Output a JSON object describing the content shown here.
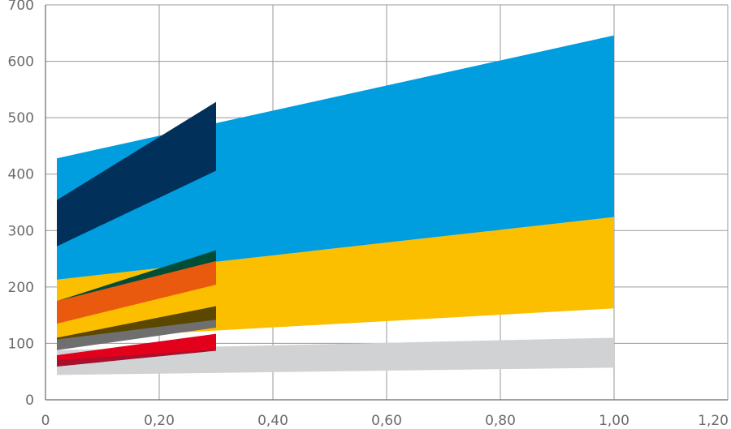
{
  "chart_data": {
    "type": "area",
    "title": "",
    "xlabel": "",
    "ylabel": "",
    "xlim": [
      0,
      1.2
    ],
    "ylim": [
      0,
      700
    ],
    "grid": true,
    "x_ticks": [
      0,
      0.2,
      0.4,
      0.6,
      0.8,
      1.0,
      1.2
    ],
    "x_tick_labels": [
      "0",
      "0,20",
      "0,40",
      "0,60",
      "0,80",
      "1,00",
      "1,20"
    ],
    "y_ticks": [
      0,
      100,
      200,
      300,
      400,
      500,
      600,
      700
    ],
    "y_tick_labels": [
      "0",
      "100",
      "200",
      "300",
      "400",
      "500",
      "600",
      "700"
    ],
    "series": [
      {
        "color": "#d1d2d4",
        "x": [
          0.02,
          1.0
        ],
        "lower": [
          44,
          57
        ],
        "upper": [
          88,
          110
        ]
      },
      {
        "color": "#fbbf00",
        "x": [
          0.02,
          1.0
        ],
        "lower": [
          107,
          162
        ],
        "upper": [
          213,
          324
        ]
      },
      {
        "color": "#009ddf",
        "x": [
          0.02,
          1.0
        ],
        "lower": [
          213,
          324
        ],
        "upper": [
          428,
          646
        ]
      },
      {
        "color": "#014d37",
        "x": [
          0.02,
          0.3
        ],
        "lower": [
          160,
          242
        ],
        "upper": [
          175,
          265
        ]
      },
      {
        "color": "#e95a0f",
        "x": [
          0.02,
          0.3
        ],
        "lower": [
          135,
          204
        ],
        "upper": [
          175,
          246
        ]
      },
      {
        "color": "#5a4700",
        "x": [
          0.02,
          0.3
        ],
        "lower": [
          106,
          128
        ],
        "upper": [
          110,
          166
        ]
      },
      {
        "color": "#6f6f6f",
        "x": [
          0.02,
          0.3
        ],
        "lower": [
          88,
          128
        ],
        "upper": [
          107,
          142
        ]
      },
      {
        "color": "#a70f2c",
        "x": [
          0.02,
          0.3
        ],
        "lower": [
          59,
          87
        ],
        "upper": [
          75,
          112
        ]
      },
      {
        "color": "#e2001a",
        "x": [
          0.02,
          0.3
        ],
        "lower": [
          70,
          89
        ],
        "upper": [
          79,
          117
        ]
      },
      {
        "color": "#01305a",
        "x": [
          0.02,
          0.3
        ],
        "lower": [
          272,
          406
        ],
        "upper": [
          354,
          528
        ]
      }
    ]
  }
}
